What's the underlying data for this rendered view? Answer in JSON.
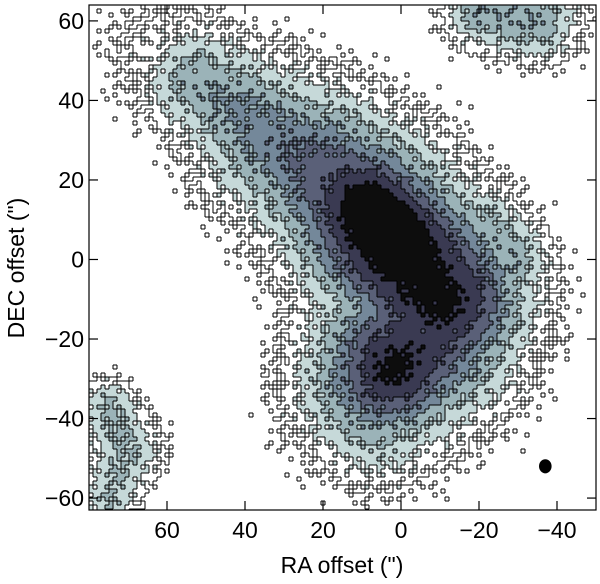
{
  "chart_data": {
    "type": "contour",
    "xlabel": "RA offset (\")",
    "ylabel": "DEC offset (\")",
    "xlim": [
      80,
      -50
    ],
    "ylim": [
      -63,
      64
    ],
    "x_ticks": [
      60,
      40,
      20,
      0,
      -20,
      -40
    ],
    "x_tick_labels": [
      "60",
      "40",
      "20",
      "0",
      "−20",
      "−40"
    ],
    "y_ticks": [
      60,
      40,
      20,
      0,
      -20,
      -40,
      -60
    ],
    "y_tick_labels": [
      "60",
      "40",
      "20",
      "0",
      "−20",
      "−40",
      "−60"
    ],
    "fill_levels": [
      "#ffffff",
      "#c6d9d9",
      "#9bb3b8",
      "#74889a",
      "#5a6078",
      "#3a3a52",
      "#0d0d0d"
    ],
    "beam": {
      "ra": -37,
      "dec": -52,
      "major": 2.8,
      "minor": 2.2,
      "color": "#000000"
    },
    "emission": {
      "main": {
        "ridge": [
          [
            60,
            51,
            8
          ],
          [
            52,
            45,
            8
          ],
          [
            42,
            38,
            9
          ],
          [
            32,
            30,
            11
          ],
          [
            20,
            22,
            12
          ],
          [
            10,
            13,
            13
          ],
          [
            3,
            5,
            13
          ],
          [
            -5,
            -3,
            13
          ],
          [
            -10,
            -10,
            13
          ],
          [
            -7,
            -18,
            13
          ],
          [
            2,
            -25,
            13
          ],
          [
            6,
            -30,
            12
          ],
          [
            6,
            -38,
            10
          ],
          [
            2,
            -44,
            8
          ]
        ],
        "plateau": [
          0.0,
          0.28,
          0.35,
          0.42,
          0.55,
          0.68,
          0.78,
          0.86,
          0.9,
          0.7,
          0.65,
          0.5,
          0.3,
          0.0
        ],
        "peaks": [
          {
            "ra": 8,
            "dec": 13,
            "amp": 0.34,
            "sigma": 5
          },
          {
            "ra": -1,
            "dec": 5,
            "amp": 0.3,
            "sigma": 4
          },
          {
            "ra": 5,
            "dec": 6,
            "amp": 0.25,
            "sigma": 9
          },
          {
            "ra": 0,
            "dec": -30,
            "amp": 0.18,
            "sigma": 6
          },
          {
            "ra": 5,
            "dec": -28,
            "amp": 0.1,
            "sigma": 7
          }
        ]
      },
      "east_arm": {
        "ridge": [
          [
            -22,
            10,
            5
          ],
          [
            -28,
            0,
            6
          ],
          [
            -28,
            -8,
            5
          ]
        ],
        "plateau": [
          0.22,
          0.3,
          0.2
        ]
      },
      "ne_patch": {
        "ridge": [
          [
            -20,
            62,
            5
          ],
          [
            -35,
            60,
            6
          ]
        ],
        "plateau": [
          0.3,
          0.3
        ]
      },
      "sw_patch": {
        "ridge": [
          [
            75,
            -37,
            4
          ],
          [
            70,
            -48,
            5
          ],
          [
            75,
            -60,
            4
          ]
        ],
        "plateau": [
          0.22,
          0.2,
          0.2
        ]
      }
    }
  }
}
